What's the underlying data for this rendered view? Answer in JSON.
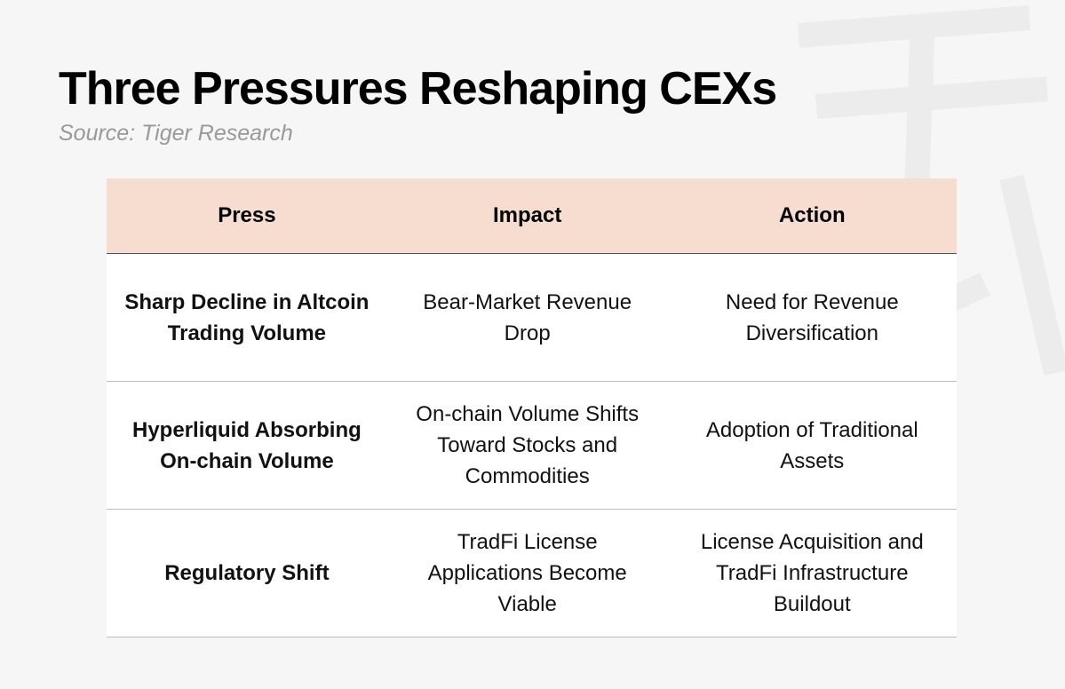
{
  "header": {
    "title": "Three Pressures Reshaping CEXs",
    "source": "Source: Tiger Research"
  },
  "table": {
    "columns": [
      "Press",
      "Impact",
      "Action"
    ],
    "rows": [
      [
        "Sharp Decline in Altcoin Trading Volume",
        "Bear-Market Revenue Drop",
        "Need for Revenue Diversification"
      ],
      [
        "Hyperliquid Absorbing On-chain Volume",
        "On-chain Volume Shifts Toward Stocks and Commodities",
        "Adoption of Traditional Assets"
      ],
      [
        "Regulatory Shift",
        "TradFi License Applications Become Viable",
        "License Acquisition and TradFi Infrastructure Buildout"
      ]
    ]
  }
}
